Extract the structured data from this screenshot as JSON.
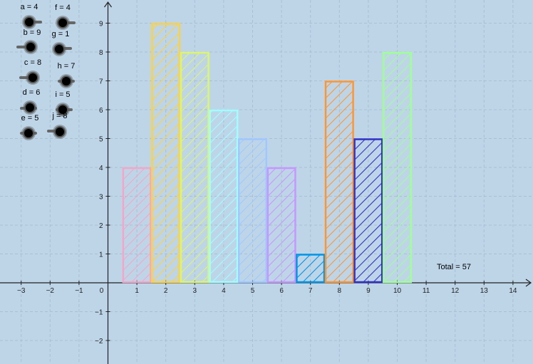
{
  "total_text": "Total = 57",
  "sliders": [
    {
      "label": "a = 4",
      "value": 4
    },
    {
      "label": "b = 9",
      "value": 9
    },
    {
      "label": "c = 8",
      "value": 8
    },
    {
      "label": "d = 6",
      "value": 6
    },
    {
      "label": "e = 5",
      "value": 5
    },
    {
      "label": "f = 4",
      "value": 4
    },
    {
      "label": "g = 1",
      "value": 1
    },
    {
      "label": "h = 7",
      "value": 7
    },
    {
      "label": "i = 5",
      "value": 5
    },
    {
      "label": "j = 8",
      "value": 8
    }
  ],
  "chart_data": {
    "type": "bar",
    "categories": [
      "1",
      "2",
      "3",
      "4",
      "5",
      "6",
      "7",
      "8",
      "9",
      "10"
    ],
    "values": [
      4,
      9,
      8,
      6,
      5,
      4,
      1,
      7,
      5,
      8
    ],
    "colors": [
      "#f4a6c8",
      "#ffd23c",
      "#dcf56e",
      "#a0ffff",
      "#a0c8ff",
      "#c896ff",
      "#0096e6",
      "#ff9632",
      "#3232c8",
      "#a0ff96"
    ],
    "xlim": [
      -3.5,
      14.7
    ],
    "ylim": [
      -2.6,
      9.8
    ],
    "x_tick_labels": [
      "−3",
      "−2",
      "−1",
      "0",
      "1",
      "2",
      "3",
      "4",
      "5",
      "6",
      "7",
      "8",
      "9",
      "10",
      "11",
      "12",
      "13",
      "14"
    ],
    "y_tick_labels": [
      "−2",
      "−1",
      "1",
      "2",
      "3",
      "4",
      "5",
      "6",
      "7",
      "8",
      "9"
    ],
    "grid": true,
    "fill_pattern": "diagonal-hatch"
  }
}
